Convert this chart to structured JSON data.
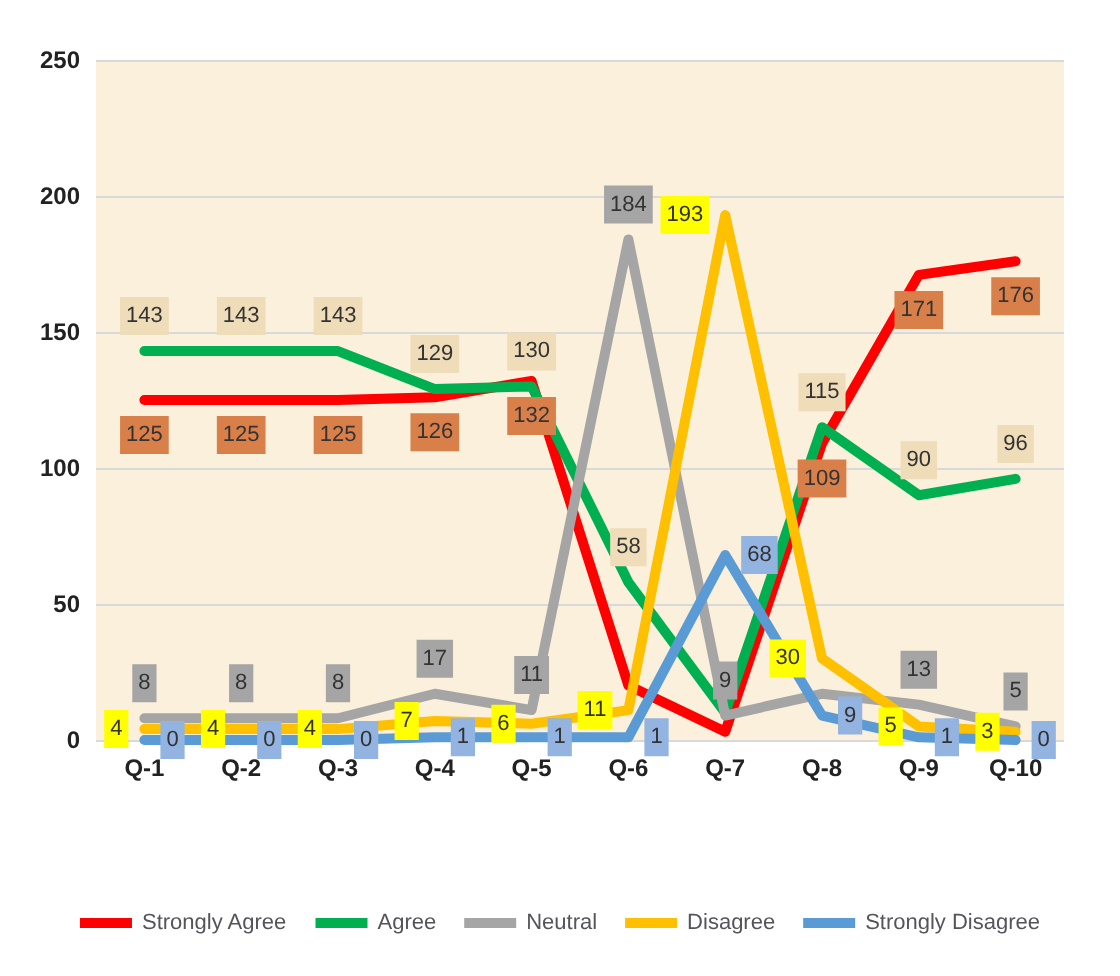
{
  "chart_data": {
    "type": "line",
    "categories": [
      "Q-1",
      "Q-2",
      "Q-3",
      "Q-4",
      "Q-5",
      "Q-6",
      "Q-7",
      "Q-8",
      "Q-9",
      "Q-10"
    ],
    "series": [
      {
        "name": "Strongly Agree",
        "color": "#ff0000",
        "values": [
          125,
          125,
          125,
          126,
          132,
          20,
          3,
          109,
          171,
          176
        ],
        "value_labels": [
          "125",
          "125",
          "125",
          "126",
          "132",
          null,
          null,
          "109",
          "171",
          "176"
        ]
      },
      {
        "name": "Agree",
        "color": "#00b050",
        "values": [
          143,
          143,
          143,
          129,
          130,
          58,
          10,
          115,
          90,
          96
        ],
        "value_labels": [
          "143",
          "143",
          "143",
          "129",
          "130",
          "58",
          null,
          "115",
          "90",
          "96"
        ]
      },
      {
        "name": "Neutral",
        "color": "#a5a5a5",
        "values": [
          8,
          8,
          8,
          17,
          11,
          184,
          9,
          17,
          13,
          5
        ],
        "value_labels": [
          "8",
          "8",
          "8",
          "17",
          "11",
          "184",
          "9",
          null,
          "13",
          "5"
        ]
      },
      {
        "name": "Disagree",
        "color": "#ffc000",
        "values": [
          4,
          4,
          4,
          7,
          6,
          11,
          193,
          30,
          5,
          3
        ],
        "value_labels": [
          "4",
          "4",
          "4",
          "7",
          "6",
          "11",
          "193",
          "30",
          "5",
          "3"
        ]
      },
      {
        "name": "Strongly Disagree",
        "color": "#5b9bd5",
        "values": [
          0,
          0,
          0,
          1,
          1,
          1,
          68,
          9,
          1,
          0
        ],
        "value_labels": [
          "0",
          "0",
          "0",
          "1",
          "1",
          "1",
          "68",
          "9",
          "1",
          "0"
        ]
      }
    ],
    "ylim": [
      0,
      250
    ],
    "yticks": [
      0,
      50,
      100,
      150,
      200,
      250
    ],
    "grid": "y",
    "legend": "bottom",
    "marker": "none",
    "line_style": "solid"
  }
}
